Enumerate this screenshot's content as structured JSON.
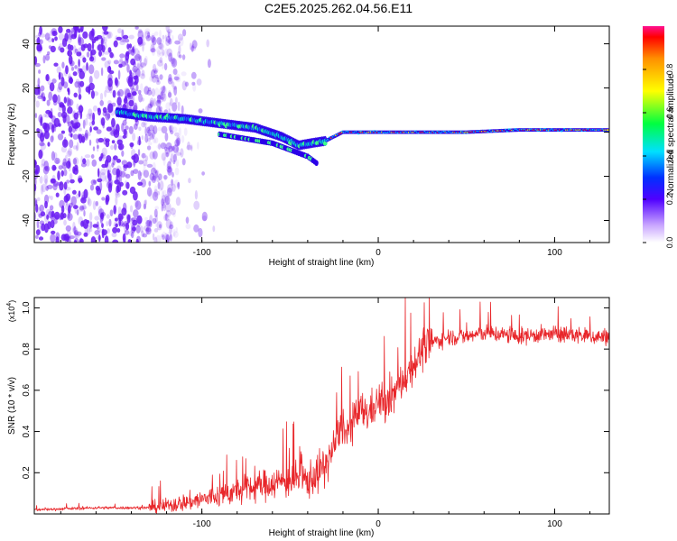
{
  "title": "C2E5.2025.262.04.56.E11",
  "colors": {
    "snr_line": "#e8262a",
    "spectrogram_scatter": "#6a1bf2",
    "frame": "#000000"
  },
  "chart_data": [
    {
      "type": "heatmap",
      "name": "spectrogram",
      "xlabel": "Height of straight line (km)",
      "ylabel": "Frequency (Hz)",
      "xlim": [
        -195,
        131
      ],
      "ylim": [
        -50,
        48
      ],
      "x_ticks": [
        -100,
        0,
        100
      ],
      "x_tick_labels": [
        "-100",
        "0",
        "100"
      ],
      "y_ticks": [
        -40,
        -20,
        0,
        20,
        40
      ],
      "y_tick_labels": [
        "-40",
        "-20",
        "0",
        "20",
        "40"
      ],
      "colorbar": {
        "label": "Normalized spectral amplitude",
        "range": [
          0,
          1
        ],
        "ticks": [
          0,
          0.2,
          0.4,
          0.6,
          0.8
        ],
        "tick_labels": [
          "0.0",
          "0.2",
          "0.4",
          "0.6",
          "0.8"
        ]
      },
      "ridge": {
        "height_km": [
          -148,
          -130,
          -110,
          -90,
          -70,
          -55,
          -45,
          -38,
          -30,
          -25,
          -20,
          0,
          20,
          50,
          80,
          100,
          131
        ],
        "frequency_hz": [
          9,
          7,
          6,
          4,
          2,
          -2,
          -6,
          -5,
          -4,
          -2,
          0,
          0,
          0,
          0,
          1,
          1,
          1
        ]
      },
      "noise_region_km": [
        -195,
        -125
      ]
    },
    {
      "type": "line",
      "name": "snr",
      "xlabel": "Height of straight line (km)",
      "ylabel": "SNR (10 * v/v)",
      "y_multiplier_label": "(x10",
      "y_multiplier_exp": "4",
      "xlim": [
        -195,
        131
      ],
      "ylim": [
        0,
        1.05
      ],
      "x_ticks": [
        -100,
        0,
        100
      ],
      "x_tick_labels": [
        "-100",
        "0",
        "100"
      ],
      "y_ticks": [
        0.2,
        0.4,
        0.6,
        0.8,
        1.0
      ],
      "y_tick_labels": [
        "0.2",
        "0.4",
        "0.6",
        "0.8",
        "1.0"
      ],
      "series": [
        {
          "name": "SNR",
          "x": [
            -195,
            -160,
            -130,
            -120,
            -100,
            -80,
            -60,
            -45,
            -40,
            -30,
            -25,
            -20,
            -18,
            -15,
            -10,
            -5,
            0,
            5,
            10,
            15,
            20,
            25,
            30,
            40,
            50,
            60,
            70,
            80,
            90,
            100,
            110,
            120,
            131
          ],
          "y": [
            0.02,
            0.03,
            0.03,
            0.04,
            0.07,
            0.11,
            0.15,
            0.17,
            0.16,
            0.23,
            0.33,
            0.44,
            0.38,
            0.43,
            0.5,
            0.49,
            0.55,
            0.52,
            0.6,
            0.66,
            0.73,
            0.79,
            0.83,
            0.86,
            0.86,
            0.88,
            0.87,
            0.86,
            0.87,
            0.87,
            0.87,
            0.86,
            0.86
          ]
        }
      ]
    }
  ]
}
